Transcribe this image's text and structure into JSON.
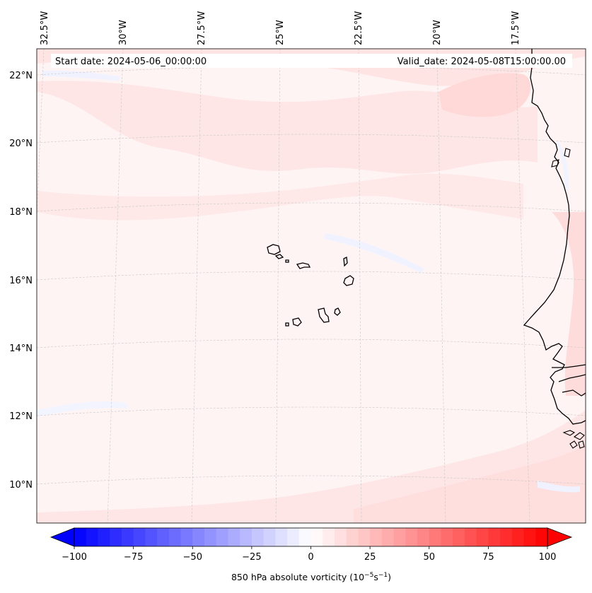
{
  "map": {
    "start_date_text": "Start date: 2024-05-06_00:00:00",
    "valid_date_text": "Valid_date: 2024-05-08T15:00:00.00",
    "lon_labels": [
      "32.5°W",
      "30°W",
      "27.5°W",
      "25°W",
      "22.5°W",
      "20°W",
      "17.5°W"
    ],
    "lat_labels": [
      "22°N",
      "20°N",
      "18°N",
      "16°N",
      "14°N",
      "12°N",
      "10°N"
    ],
    "field": "850 hPa absolute vorticity",
    "colormap": "bwr",
    "colors": {
      "coast": "#000000",
      "grid": "#c8c8c8",
      "background_field": "#fff4f4",
      "light_red": "#ffe3e3",
      "medium_red": "#ffd4d4",
      "light_blue": "#eef2ff"
    }
  },
  "colorbar": {
    "min": -100,
    "max": 100,
    "step": 5,
    "extend": "both",
    "ticks": [
      "−100",
      "−75",
      "−50",
      "−25",
      "0",
      "25",
      "50",
      "75",
      "100"
    ],
    "label_prefix": "850 hPa absolute vorticity (10",
    "label_exp1": "−5",
    "label_mid": "s",
    "label_exp2": "−1",
    "label_suffix": ")"
  }
}
